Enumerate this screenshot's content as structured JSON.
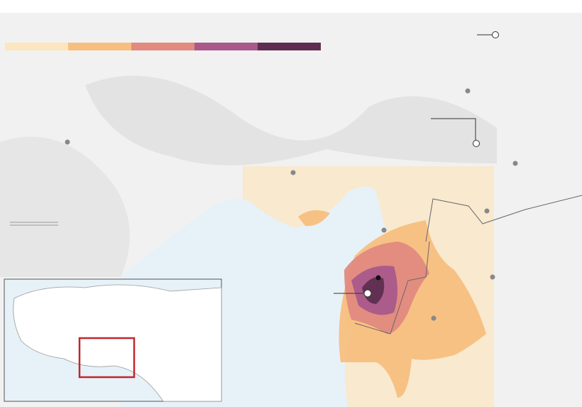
{
  "legend": {
    "colors": [
      "#fbe6c0",
      "#f7bf7f",
      "#e08a80",
      "#a95a8a",
      "#5e2d4f"
    ]
  }
}
